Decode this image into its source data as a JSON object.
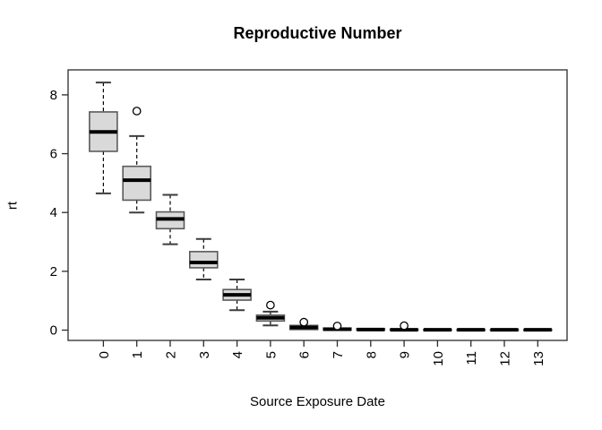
{
  "window": {
    "background": "#ffffff"
  },
  "chart_data": {
    "type": "boxplot",
    "title": "Reproductive Number",
    "xlabel": "Source Exposure Date",
    "ylabel": "rt",
    "categories": [
      "0",
      "1",
      "2",
      "3",
      "4",
      "5",
      "6",
      "7",
      "8",
      "9",
      "10",
      "11",
      "12",
      "13"
    ],
    "x_tick_rotation": -90,
    "y_ticks": [
      0,
      2,
      4,
      6,
      8
    ],
    "ylim": [
      -0.35,
      8.85
    ],
    "grid": false,
    "legend": "none",
    "colors": {
      "box_fill": "#d9d9d9",
      "box_border": "#5a5a5a",
      "median": "#000000",
      "whisker": "#000000",
      "cap": "#3d3d3d",
      "frame": "#2b2b2b",
      "text": "#000000",
      "outlier_fill": "#ffffff",
      "background": "#ffffff"
    },
    "boxes": [
      {
        "category": "0",
        "whisker_low": 4.65,
        "q1": 6.08,
        "median": 6.74,
        "q3": 7.42,
        "whisker_high": 8.42,
        "outliers": []
      },
      {
        "category": "1",
        "whisker_low": 4.0,
        "q1": 4.42,
        "median": 5.1,
        "q3": 5.57,
        "whisker_high": 6.6,
        "outliers": [
          7.45
        ]
      },
      {
        "category": "2",
        "whisker_low": 2.92,
        "q1": 3.45,
        "median": 3.78,
        "q3": 4.02,
        "whisker_high": 4.6,
        "outliers": []
      },
      {
        "category": "3",
        "whisker_low": 1.72,
        "q1": 2.12,
        "median": 2.3,
        "q3": 2.67,
        "whisker_high": 3.1,
        "outliers": []
      },
      {
        "category": "4",
        "whisker_low": 0.68,
        "q1": 1.02,
        "median": 1.2,
        "q3": 1.38,
        "whisker_high": 1.72,
        "outliers": []
      },
      {
        "category": "5",
        "whisker_low": 0.16,
        "q1": 0.31,
        "median": 0.42,
        "q3": 0.51,
        "whisker_high": 0.63,
        "outliers": [
          0.85
        ]
      },
      {
        "category": "6",
        "whisker_low": 0.0,
        "q1": 0.02,
        "median": 0.09,
        "q3": 0.16,
        "whisker_high": 0.19,
        "outliers": [
          0.27
        ]
      },
      {
        "category": "7",
        "whisker_low": 0.0,
        "q1": 0.0,
        "median": 0.03,
        "q3": 0.07,
        "whisker_high": 0.08,
        "outliers": [
          0.14
        ]
      },
      {
        "category": "8",
        "whisker_low": 0.0,
        "q1": 0.0,
        "median": 0.02,
        "q3": 0.05,
        "whisker_high": 0.06,
        "outliers": []
      },
      {
        "category": "9",
        "whisker_low": 0.0,
        "q1": 0.0,
        "median": 0.01,
        "q3": 0.03,
        "whisker_high": 0.04,
        "outliers": [
          0.15
        ]
      },
      {
        "category": "10",
        "whisker_low": 0.0,
        "q1": 0.0,
        "median": 0.01,
        "q3": 0.02,
        "whisker_high": 0.02,
        "outliers": []
      },
      {
        "category": "11",
        "whisker_low": 0.0,
        "q1": 0.0,
        "median": 0.01,
        "q3": 0.02,
        "whisker_high": 0.02,
        "outliers": []
      },
      {
        "category": "12",
        "whisker_low": 0.0,
        "q1": 0.0,
        "median": 0.01,
        "q3": 0.02,
        "whisker_high": 0.02,
        "outliers": []
      },
      {
        "category": "13",
        "whisker_low": 0.0,
        "q1": 0.0,
        "median": 0.01,
        "q3": 0.02,
        "whisker_high": 0.02,
        "outliers": []
      }
    ]
  }
}
